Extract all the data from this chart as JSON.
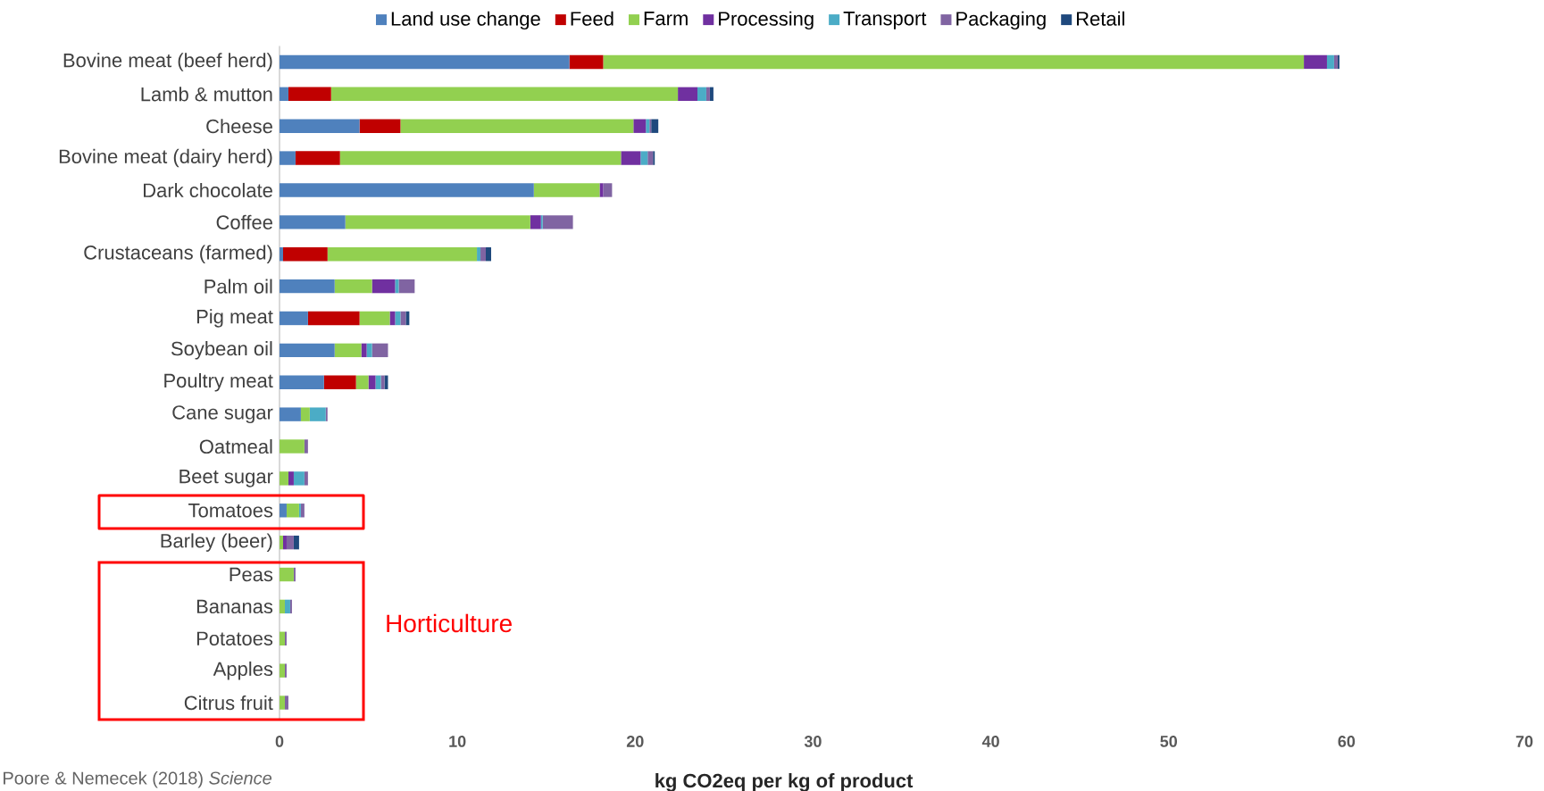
{
  "chart_data": {
    "type": "bar",
    "orientation": "horizontal",
    "stacked": true,
    "legend": "top",
    "xlabel": "kg CO2eq per kg of product",
    "xlim": [
      0,
      70
    ],
    "xticks": [
      0,
      10,
      20,
      30,
      40,
      50,
      60,
      70
    ],
    "categories": [
      "Bovine meat (beef herd)",
      "Lamb & mutton",
      "Cheese",
      "Bovine meat (dairy herd)",
      "Dark chocolate",
      "Coffee",
      "Crustaceans (farmed)",
      "Palm oil",
      "Pig meat",
      "Soybean oil",
      "Poultry meat",
      "Cane sugar",
      "Oatmeal",
      "Beet sugar",
      "Tomatoes",
      "Barley (beer)",
      "Peas",
      "Bananas",
      "Potatoes",
      "Apples",
      "Citrus fruit"
    ],
    "series": [
      {
        "name": "Land use change",
        "color": "#4f81bd",
        "values": [
          16.3,
          0.5,
          4.5,
          0.9,
          14.3,
          3.7,
          0.2,
          3.1,
          1.6,
          3.1,
          2.5,
          1.2,
          0,
          0,
          0.4,
          0,
          0,
          0,
          0,
          0,
          0
        ]
      },
      {
        "name": "Feed",
        "color": "#c00000",
        "values": [
          1.9,
          2.4,
          2.3,
          2.5,
          0,
          0,
          2.5,
          0,
          2.9,
          0,
          1.8,
          0,
          0,
          0,
          0,
          0,
          0,
          0,
          0,
          0,
          0
        ]
      },
      {
        "name": "Farm",
        "color": "#92d050",
        "values": [
          39.4,
          19.5,
          13.1,
          15.8,
          3.7,
          10.4,
          8.4,
          2.1,
          1.7,
          1.5,
          0.7,
          0.5,
          1.4,
          0.5,
          0.7,
          0.2,
          0.8,
          0.3,
          0.3,
          0.3,
          0.3
        ]
      },
      {
        "name": "Processing",
        "color": "#7030a0",
        "values": [
          1.3,
          1.1,
          0.7,
          1.1,
          0.2,
          0.6,
          0,
          1.3,
          0.3,
          0.3,
          0.4,
          0,
          0,
          0.3,
          0,
          0.2,
          0,
          0,
          0,
          0,
          0
        ]
      },
      {
        "name": "Transport",
        "color": "#4bacc6",
        "values": [
          0.4,
          0.5,
          0.2,
          0.4,
          0,
          0.1,
          0.2,
          0.2,
          0.3,
          0.3,
          0.3,
          0.9,
          0,
          0.6,
          0.1,
          0,
          0,
          0.3,
          0,
          0,
          0
        ]
      },
      {
        "name": "Packaging",
        "color": "#8064a2",
        "values": [
          0.2,
          0.2,
          0.1,
          0.3,
          0.5,
          1.7,
          0.3,
          0.9,
          0.3,
          0.9,
          0.2,
          0.1,
          0.2,
          0.2,
          0.2,
          0.4,
          0.1,
          0.1,
          0.1,
          0.1,
          0.2
        ]
      },
      {
        "name": "Retail",
        "color": "#1f497d",
        "values": [
          0.1,
          0.2,
          0.4,
          0.1,
          0,
          0,
          0.3,
          0,
          0.2,
          0,
          0.2,
          0,
          0,
          0,
          0,
          0.3,
          0,
          0,
          0,
          0,
          0
        ]
      }
    ],
    "annotations": [
      "Horticulture",
      "Poore & Nemecek (2018) *Science*"
    ]
  }
}
